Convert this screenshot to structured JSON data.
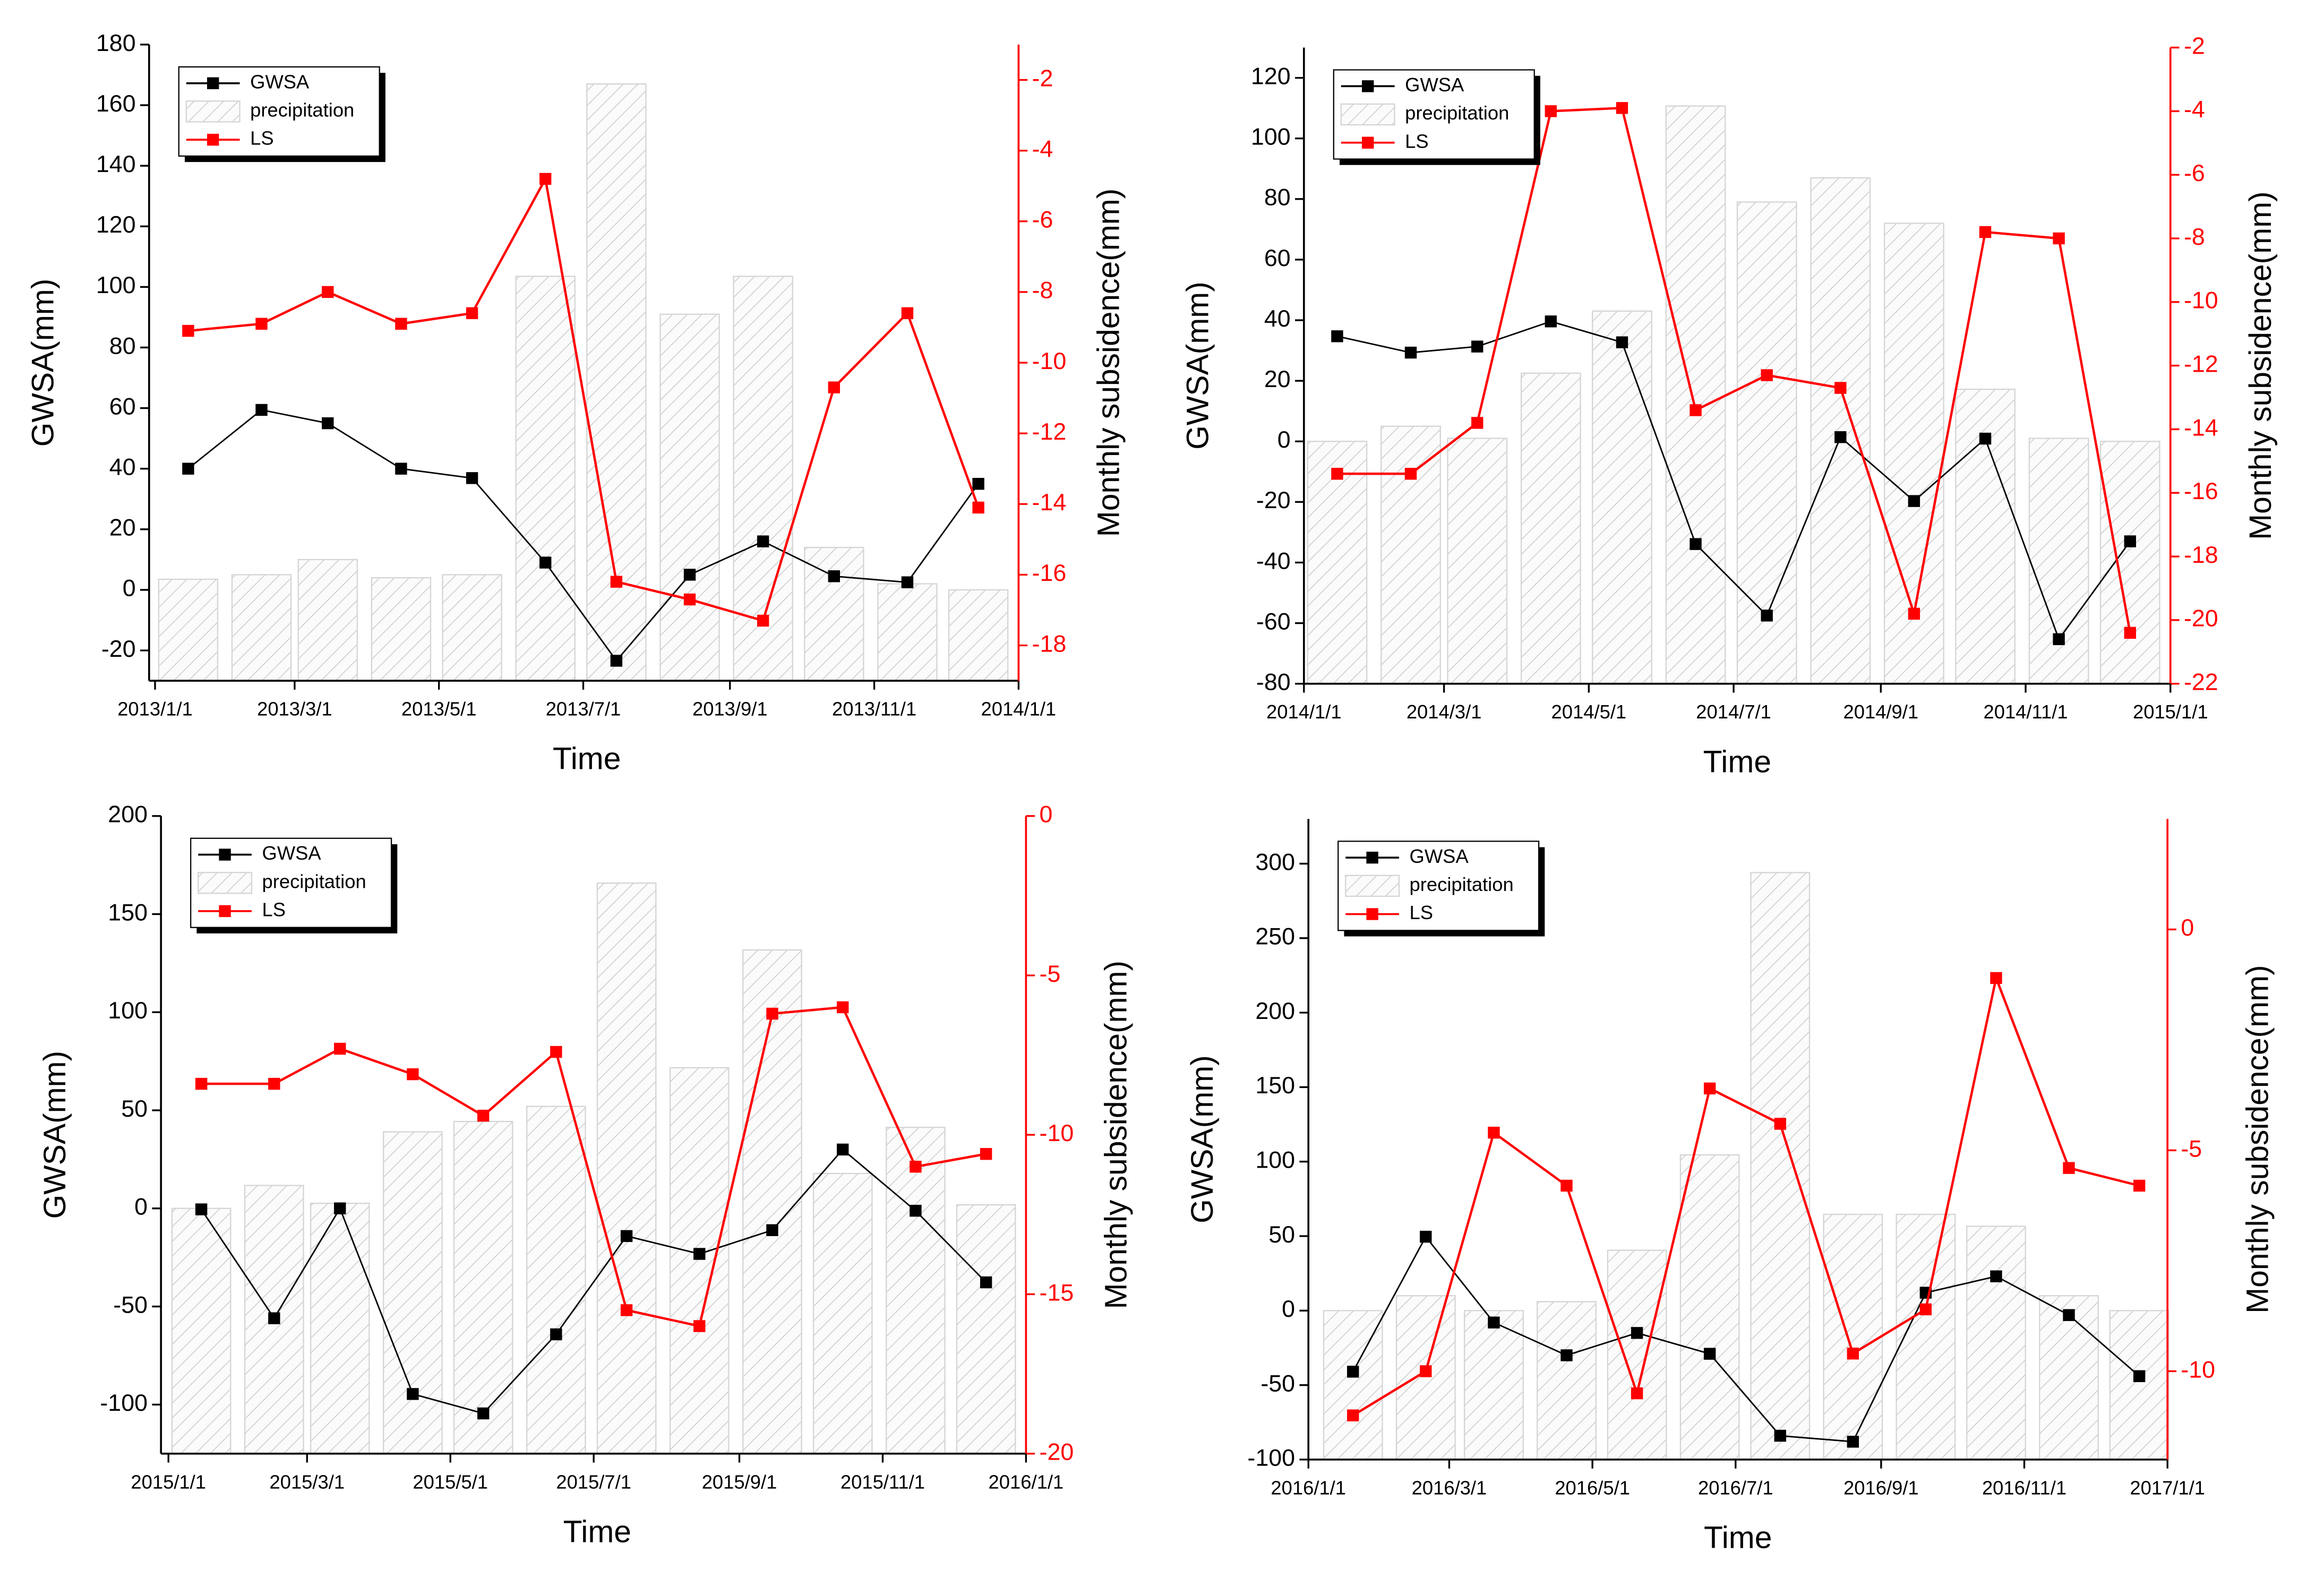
{
  "chart_data": [
    {
      "type": "bar-line",
      "x": [
        "2013/1/15",
        "2013/2/15",
        "2013/3/15",
        "2013/4/15",
        "2013/5/15",
        "2013/6/15",
        "2013/7/15",
        "2013/8/15",
        "2013/9/15",
        "2013/10/15",
        "2013/11/15",
        "2013/12/15"
      ],
      "xlim": [
        "2013/1/1",
        "2014/1/1"
      ],
      "xticks": [
        "2013/1/1",
        "2013/3/1",
        "2013/5/1",
        "2013/7/1",
        "2013/9/1",
        "2013/11/1",
        "2014/1/1"
      ],
      "x_label": "Time",
      "y_label": "GWSA(mm)",
      "y2_label": "Monthly subsidence(mm)",
      "ylim": [
        -30,
        180
      ],
      "yticks": [
        -20,
        0,
        20,
        40,
        60,
        80,
        100,
        120,
        140,
        160,
        180
      ],
      "y2lim": [
        -19,
        -1
      ],
      "y2ticks": [
        -18,
        -16,
        -14,
        -12,
        -10,
        -8,
        -6,
        -4,
        -2
      ],
      "series": [
        {
          "name": "GWSA",
          "type": "line",
          "color": "#000000",
          "values": [
            40,
            59.4,
            55,
            40,
            36.9,
            9,
            -23.4,
            5,
            16,
            4.5,
            2.5,
            35
          ]
        },
        {
          "name": "precipitation",
          "type": "bar",
          "color": "#d4d4d4",
          "values": [
            3.5,
            5,
            10,
            4,
            5,
            103.5,
            167,
            91,
            103.5,
            14,
            2,
            0
          ]
        },
        {
          "name": "LS",
          "type": "line",
          "axis": "y2",
          "color": "#ff0000",
          "values": [
            -9.1,
            -8.9,
            -8.0,
            -8.9,
            -8.6,
            -4.8,
            -16.2,
            -16.7,
            -17.3,
            -10.7,
            -8.6,
            -14.1
          ]
        }
      ]
    },
    {
      "type": "bar-line",
      "x": [
        "2014/1/15",
        "2014/2/15",
        "2014/3/15",
        "2014/4/15",
        "2014/5/15",
        "2014/6/15",
        "2014/7/15",
        "2014/8/15",
        "2014/9/15",
        "2014/10/15",
        "2014/11/15",
        "2014/12/15"
      ],
      "xlim": [
        "2014/1/1",
        "2015/1/1"
      ],
      "xticks": [
        "2014/1/1",
        "2014/3/1",
        "2014/5/1",
        "2014/7/1",
        "2014/9/1",
        "2014/11/1",
        "2015/1/1"
      ],
      "x_label": "Time",
      "y_label": "GWSA(mm)",
      "y2_label": "Monthly subsidence(mm)",
      "ylim": [
        -80,
        130
      ],
      "yticks": [
        -80,
        -60,
        -40,
        -20,
        0,
        20,
        40,
        60,
        80,
        100,
        120
      ],
      "y2lim": [
        -22,
        -2
      ],
      "y2ticks": [
        -22,
        -20,
        -18,
        -16,
        -14,
        -12,
        -10,
        -8,
        -6,
        -4,
        -2
      ],
      "series": [
        {
          "name": "GWSA",
          "type": "line",
          "color": "#000000",
          "values": [
            34.7,
            29.3,
            31.3,
            39.6,
            32.7,
            -33.9,
            -57.5,
            1.4,
            -19.7,
            0.9,
            -65.3,
            -33
          ]
        },
        {
          "name": "precipitation",
          "type": "bar",
          "color": "#d4d4d4",
          "values": [
            0,
            5,
            1,
            22.5,
            43,
            110.7,
            79,
            87,
            72,
            17.2,
            1,
            0
          ]
        },
        {
          "name": "LS",
          "type": "line",
          "axis": "y2",
          "color": "#ff0000",
          "values": [
            -15.4,
            -15.4,
            -13.8,
            -4.0,
            -3.9,
            -13.4,
            -12.3,
            -12.7,
            -19.8,
            -7.8,
            -8.0,
            -20.4
          ]
        }
      ]
    },
    {
      "type": "bar-line",
      "x": [
        "2015/1/15",
        "2015/2/15",
        "2015/3/15",
        "2015/4/15",
        "2015/5/15",
        "2015/6/15",
        "2015/7/15",
        "2015/8/15",
        "2015/9/15",
        "2015/10/15",
        "2015/11/15",
        "2015/12/15"
      ],
      "xlim": [
        "2015/1/1",
        "2016/1/1"
      ],
      "xticks": [
        "2015/1/1",
        "2015/3/1",
        "2015/5/1",
        "2015/7/1",
        "2015/9/1",
        "2015/11/1",
        "2016/1/1"
      ],
      "x_label": "Time",
      "y_label": "GWSA(mm)",
      "y2_label": "Monthly subsidence(mm)",
      "ylim": [
        -125,
        200
      ],
      "yticks": [
        -100,
        -50,
        0,
        50,
        100,
        150,
        200
      ],
      "y2lim": [
        -20,
        0
      ],
      "y2ticks": [
        -20,
        -15,
        -10,
        -5,
        0
      ],
      "series": [
        {
          "name": "GWSA",
          "type": "line",
          "color": "#000000",
          "values": [
            -0.5,
            -56,
            0,
            -94.6,
            -104.5,
            -64.2,
            -14.1,
            -23.2,
            -11.1,
            30,
            -1.2,
            -37.7
          ]
        },
        {
          "name": "precipitation",
          "type": "bar",
          "color": "#d4d4d4",
          "values": [
            0,
            11.7,
            2.6,
            39,
            44.3,
            52,
            165.8,
            71.7,
            131.7,
            17.8,
            41.3,
            1.8
          ]
        },
        {
          "name": "LS",
          "type": "line",
          "axis": "y2",
          "color": "#ff0000",
          "values": [
            -8.4,
            -8.4,
            -7.3,
            -8.1,
            -9.4,
            -7.4,
            -15.5,
            -16.0,
            -6.2,
            -6.0,
            -11.0,
            -10.6
          ]
        }
      ]
    },
    {
      "type": "bar-line",
      "x": [
        "2016/1/20",
        "2016/2/20",
        "2016/3/20",
        "2016/4/20",
        "2016/5/20",
        "2016/6/20",
        "2016/7/20",
        "2016/8/20",
        "2016/9/20",
        "2016/10/20",
        "2016/11/20",
        "2016/12/20"
      ],
      "xlim": [
        "2016/1/1",
        "2017/1/1"
      ],
      "xticks": [
        "2016/1/1",
        "2016/3/1",
        "2016/5/1",
        "2016/7/1",
        "2016/9/1",
        "2016/11/1",
        "2017/1/1"
      ],
      "x_label": "Time",
      "y_label": "GWSA(mm)",
      "y2_label": "Monthly subsidence(mm)",
      "ylim": [
        -100,
        330
      ],
      "yticks": [
        -100,
        -50,
        0,
        50,
        100,
        150,
        200,
        250,
        300
      ],
      "y2lim": [
        -12,
        2.5
      ],
      "y2ticks": [
        -10,
        -5,
        0
      ],
      "series": [
        {
          "name": "GWSA",
          "type": "line",
          "color": "#000000",
          "values": [
            -41,
            49.6,
            -8,
            -30,
            -15,
            -29,
            -84,
            -88,
            12,
            23,
            -3,
            -44
          ]
        },
        {
          "name": "precipitation",
          "type": "bar",
          "color": "#d4d4d4",
          "values": [
            0,
            10,
            0,
            6,
            40.5,
            104.5,
            294,
            64.6,
            64.6,
            56.6,
            10,
            0
          ]
        },
        {
          "name": "LS",
          "type": "line",
          "axis": "y2",
          "color": "#ff0000",
          "values": [
            -11.0,
            -10.0,
            -4.6,
            -5.8,
            -10.5,
            -3.6,
            -4.4,
            -9.6,
            -8.6,
            -1.1,
            -5.4,
            -5.8
          ]
        }
      ]
    }
  ]
}
